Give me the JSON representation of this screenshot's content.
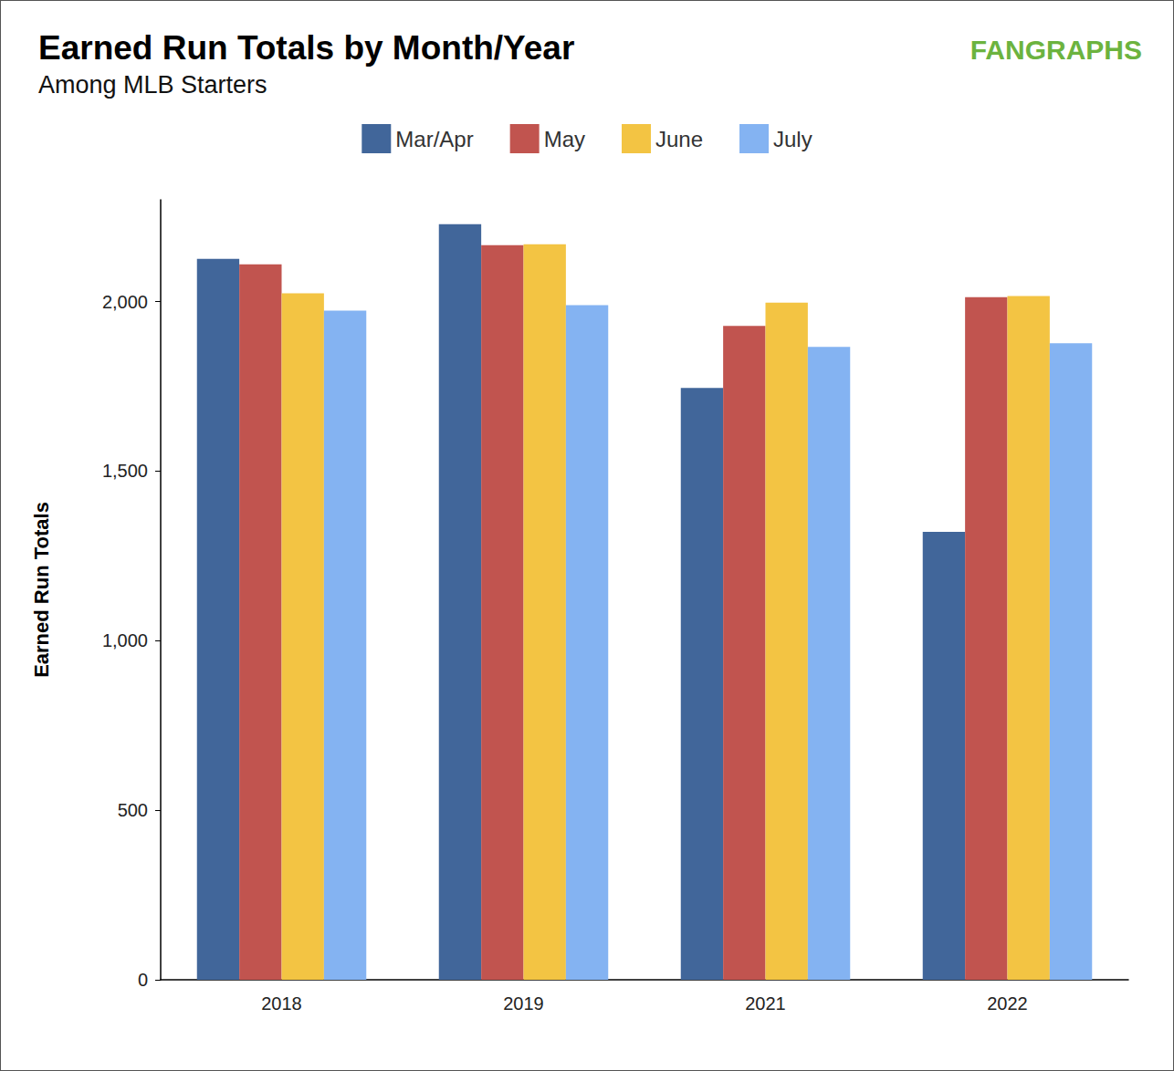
{
  "chart_data": {
    "type": "bar",
    "title": "Earned Run Totals by Month/Year",
    "subtitle": "Among MLB Starters",
    "logo": "FANGRAPHS",
    "y_label": "Earned Run Totals",
    "categories": [
      "2018",
      "2019",
      "2021",
      "2022"
    ],
    "series": [
      {
        "name": "Mar/Apr",
        "color": "#41669a",
        "values": [
          2126,
          2228,
          1745,
          1321
        ]
      },
      {
        "name": "May",
        "color": "#c1544f",
        "values": [
          2110,
          2166,
          1928,
          2013
        ]
      },
      {
        "name": "June",
        "color": "#f3c443",
        "values": [
          2024,
          2169,
          1997,
          2016
        ]
      },
      {
        "name": "July",
        "color": "#84b3f2",
        "values": [
          1973,
          1989,
          1866,
          1877
        ]
      }
    ],
    "ylim": [
      0,
      2300
    ],
    "yticks": [
      0,
      500,
      {
        "value": 1000,
        "label": "1,000"
      },
      {
        "value": 1500,
        "label": "1,500"
      },
      {
        "value": 2000,
        "label": "2,000"
      }
    ],
    "grid": false,
    "legend": "top"
  }
}
